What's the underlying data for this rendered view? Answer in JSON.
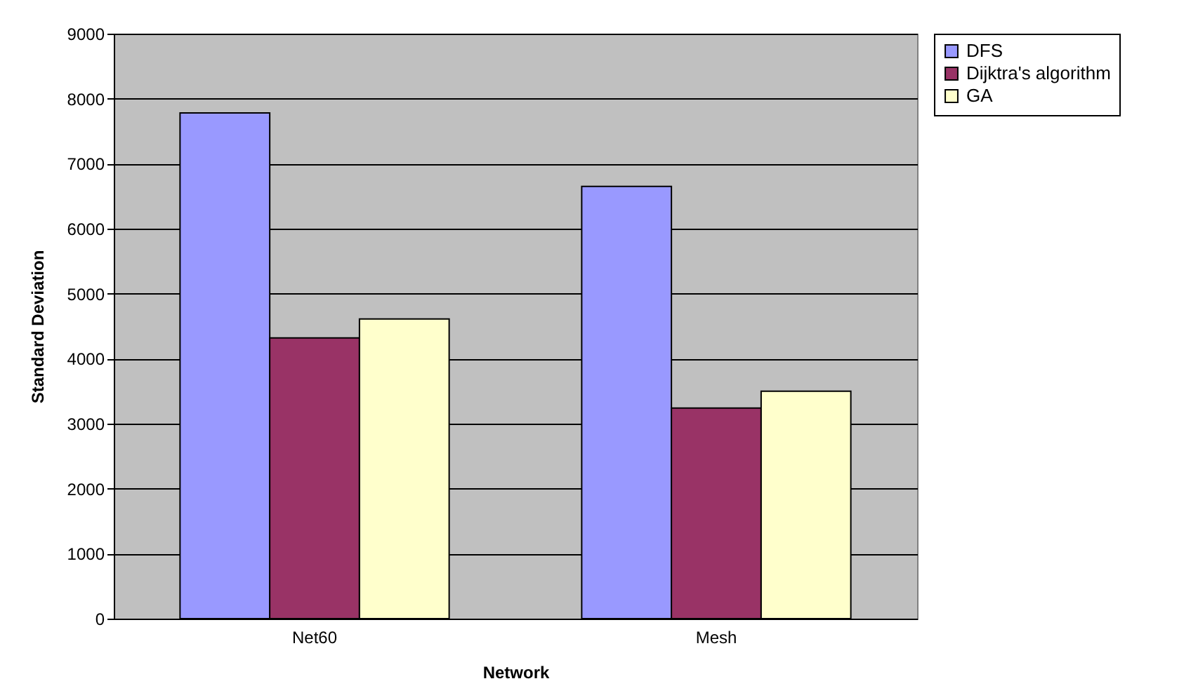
{
  "chart_data": {
    "type": "bar",
    "xlabel": "Network",
    "ylabel": "Standard Deviation",
    "categories": [
      "Net60",
      "Mesh"
    ],
    "series": [
      {
        "name": "DFS",
        "color": "#9999ff",
        "values": [
          7780,
          6650
        ]
      },
      {
        "name": "Dijktra's algorithm",
        "color": "#993366",
        "values": [
          4320,
          3240
        ]
      },
      {
        "name": "GA",
        "color": "#ffffcc",
        "values": [
          4610,
          3500
        ]
      }
    ],
    "ylim": [
      0,
      9000
    ],
    "yticks": [
      0,
      1000,
      2000,
      3000,
      4000,
      5000,
      6000,
      7000,
      8000,
      9000
    ],
    "grid": "y",
    "legend": "right"
  }
}
